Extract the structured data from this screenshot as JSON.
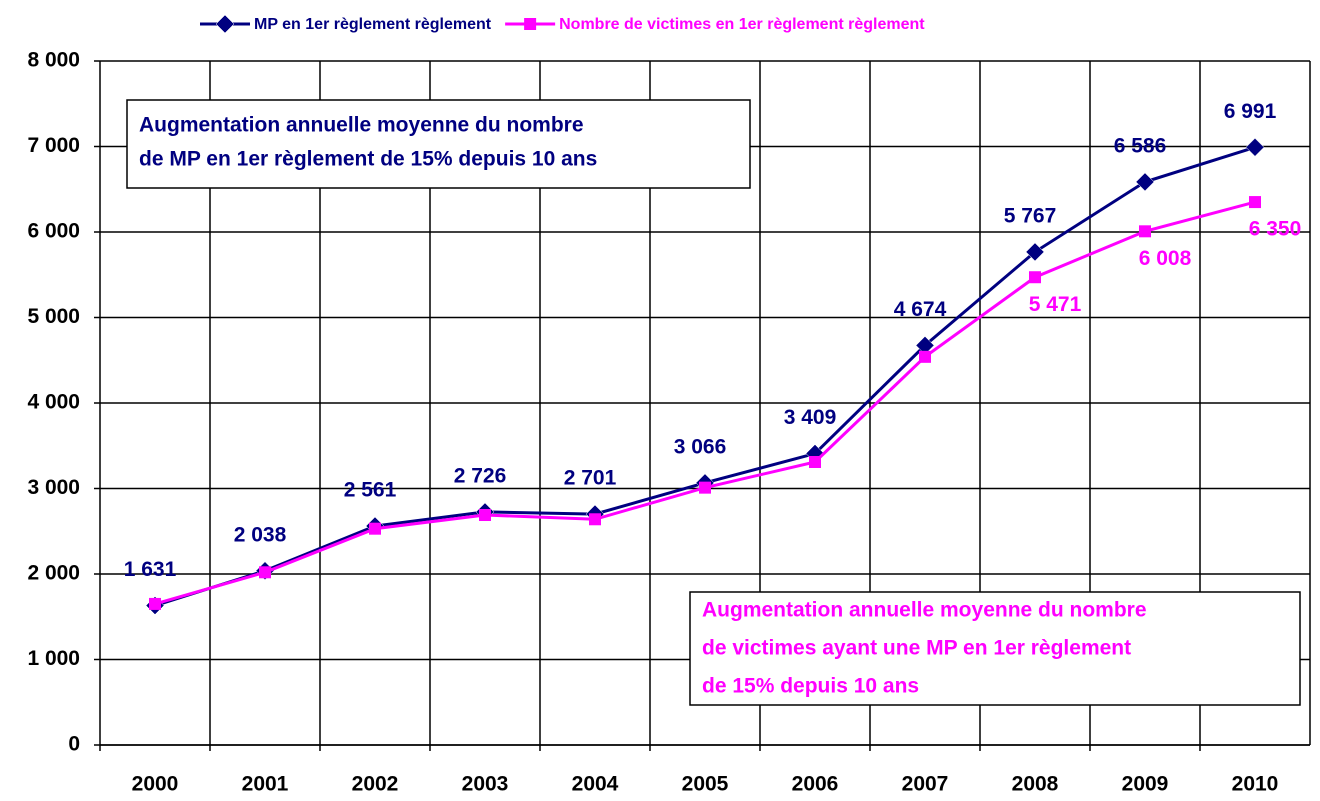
{
  "chart_data": {
    "type": "line",
    "categories": [
      "2000",
      "2001",
      "2002",
      "2003",
      "2004",
      "2005",
      "2006",
      "2007",
      "2008",
      "2009",
      "2010"
    ],
    "series": [
      {
        "name": "MP en 1er règlement règlement",
        "color": "#000080",
        "marker": "diamond",
        "values": [
          1631,
          2038,
          2561,
          2726,
          2701,
          3066,
          3409,
          4674,
          5767,
          6586,
          6991
        ],
        "value_labels": [
          "1 631",
          "2 038",
          "2 561",
          "2 726",
          "2 701",
          "3 066",
          "3 409",
          "4 674",
          "5 767",
          "6 586",
          "6 991"
        ]
      },
      {
        "name": "Nombre de victimes en 1er règlement règlement",
        "color": "#ff00ff",
        "marker": "square",
        "values": [
          1650,
          2020,
          2530,
          2690,
          2640,
          3010,
          3310,
          4540,
          5471,
          6008,
          6350
        ],
        "value_labels": [
          null,
          null,
          null,
          null,
          null,
          null,
          null,
          null,
          "5 471",
          "6 008",
          "6 350"
        ]
      }
    ],
    "ylim": [
      0,
      8000
    ],
    "yticks": [
      0,
      {
        "value": 1000,
        "label": "1 000"
      },
      {
        "value": 2000,
        "label": "2 000"
      },
      {
        "value": 3000,
        "label": "3 000"
      },
      {
        "value": 4000,
        "label": "4 000"
      },
      {
        "value": 5000,
        "label": "5 000"
      },
      {
        "value": 6000,
        "label": "6 000"
      },
      {
        "value": 7000,
        "label": "7 000"
      },
      {
        "value": 8000,
        "label": "8 000"
      }
    ],
    "grid": true,
    "legend": "top",
    "annotations": [
      {
        "lines": [
          "Augmentation annuelle moyenne du nombre",
          "de MP en 1er règlement de 15% depuis 10 ans"
        ],
        "color": "#000080"
      },
      {
        "lines": [
          "Augmentation annuelle moyenne du nombre",
          "de victimes ayant une MP en 1er règlement",
          "de 15% depuis 10 ans"
        ],
        "color": "#ff00ff"
      }
    ]
  }
}
